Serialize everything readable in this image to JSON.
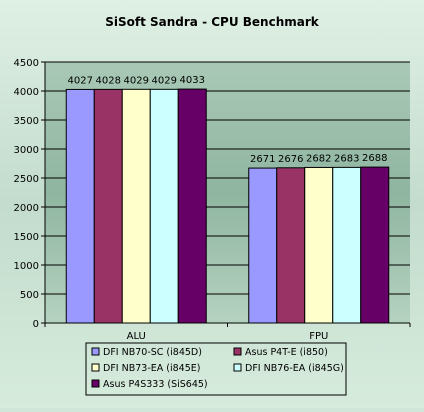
{
  "chart_data": {
    "type": "bar",
    "title": "SiSoft Sandra - CPU Benchmark",
    "xlabel": "",
    "ylabel": "",
    "categories": [
      "ALU",
      "FPU"
    ],
    "ylim": [
      0,
      4500
    ],
    "yticks": [
      0,
      500,
      1000,
      1500,
      2000,
      2500,
      3000,
      3500,
      4000,
      4500
    ],
    "grid": true,
    "legend_position": "bottom",
    "series": [
      {
        "name": "DFI NB70-SC (i845D)",
        "color": "#9999ff",
        "values": [
          4027,
          2671
        ]
      },
      {
        "name": "Asus P4T-E (i850)",
        "color": "#993366",
        "values": [
          4028,
          2676
        ]
      },
      {
        "name": "DFI NB73-EA (i845E)",
        "color": "#ffffcc",
        "values": [
          4029,
          2682
        ]
      },
      {
        "name": "DFI NB76-EA (i845G)",
        "color": "#ccffff",
        "values": [
          4029,
          2683
        ]
      },
      {
        "name": "Asus P4S333 (SiS645)",
        "color": "#660066",
        "values": [
          4033,
          2688
        ]
      }
    ]
  }
}
